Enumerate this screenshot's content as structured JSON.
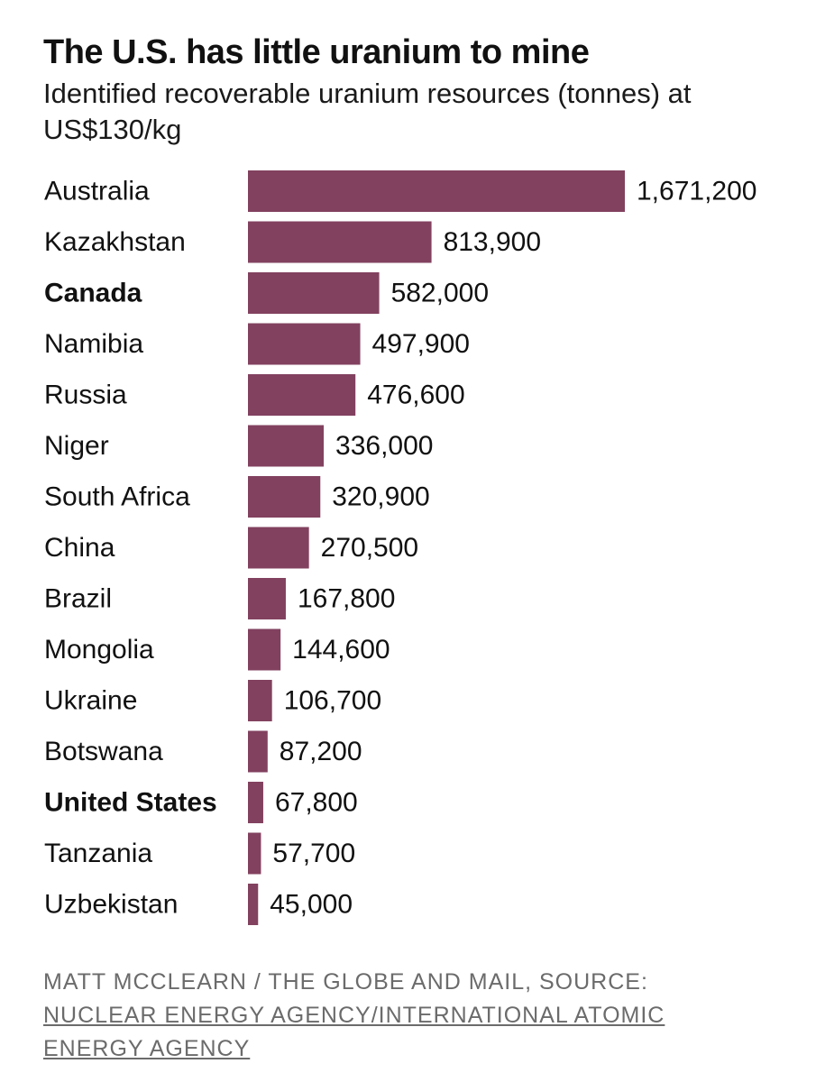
{
  "chart_data": {
    "type": "bar",
    "orientation": "horizontal",
    "title": "The U.S. has little uranium to mine",
    "subtitle": "Identified recoverable uranium resources (tonnes) at US$130/kg",
    "categories": [
      "Australia",
      "Kazakhstan",
      "Canada",
      "Namibia",
      "Russia",
      "Niger",
      "South Africa",
      "China",
      "Brazil",
      "Mongolia",
      "Ukraine",
      "Botswana",
      "United States",
      "Tanzania",
      "Uzbekistan"
    ],
    "values": [
      1671200,
      813900,
      582000,
      497900,
      476600,
      336000,
      320900,
      270500,
      167800,
      144600,
      106700,
      87200,
      67800,
      57700,
      45000
    ],
    "value_labels": [
      "1,671,200",
      "813,900",
      "582,000",
      "497,900",
      "476,600",
      "336,000",
      "320,900",
      "270,500",
      "167,800",
      "144,600",
      "106,700",
      "87,200",
      "67,800",
      "57,700",
      "45,000"
    ],
    "highlighted": [
      "Canada",
      "United States"
    ],
    "bar_color": "#82415f",
    "xlim": [
      0,
      1671200
    ],
    "grid": false,
    "legend": "none"
  },
  "source": {
    "credit": "MATT MCCLEARN / THE GLOBE AND MAIL, SOURCE:",
    "link_text": "NUCLEAR ENERGY AGENCY/INTERNATIONAL ATOMIC ENERGY AGENCY"
  }
}
